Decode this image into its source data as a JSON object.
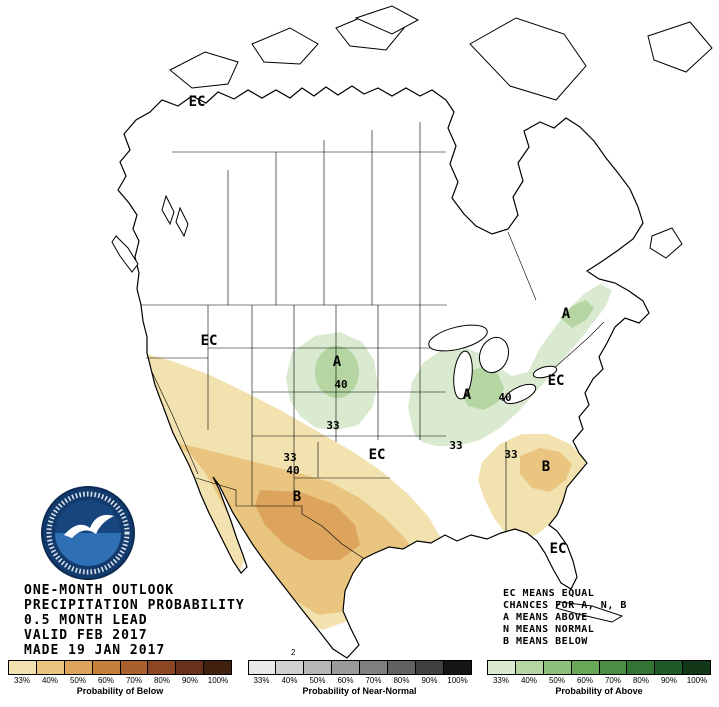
{
  "title_block": {
    "lines": [
      "ONE-MONTH OUTLOOK",
      "PRECIPITATION PROBABILITY",
      "0.5 MONTH LEAD",
      "VALID FEB 2017",
      "MADE 19 JAN 2017"
    ]
  },
  "legend_note": {
    "lines": [
      "EC MEANS EQUAL",
      "CHANCES FOR A, N, B",
      "A MEANS ABOVE",
      "N MEANS NORMAL",
      "B MEANS BELOW"
    ]
  },
  "map": {
    "labels": [
      {
        "id": "ec-northwest-canada",
        "text": "EC"
      },
      {
        "id": "ec-northwest-us",
        "text": "EC"
      },
      {
        "id": "ec-central-us",
        "text": "EC"
      },
      {
        "id": "ec-east-coast",
        "text": "EC"
      },
      {
        "id": "ec-florida",
        "text": "EC"
      },
      {
        "id": "a-northern-plains",
        "text": "A"
      },
      {
        "id": "contour-40-plains",
        "text": "40"
      },
      {
        "id": "contour-33-plains",
        "text": "33"
      },
      {
        "id": "a-great-lakes",
        "text": "A"
      },
      {
        "id": "contour-40-lakes",
        "text": "40"
      },
      {
        "id": "contour-33-lakes",
        "text": "33"
      },
      {
        "id": "a-northeast",
        "text": "A"
      },
      {
        "id": "contour-33-southwest",
        "text": "33"
      },
      {
        "id": "contour-40-southwest",
        "text": "40"
      },
      {
        "id": "b-southwest",
        "text": "B"
      },
      {
        "id": "contour-33-southeast",
        "text": "33"
      },
      {
        "id": "b-southeast",
        "text": "B"
      }
    ]
  },
  "region_fills": {
    "below_outer": "#f2e2b0",
    "below_mid": "#e9c580",
    "below_core": "#dca45c",
    "above_outer": "#d9ead0",
    "above_inner": "#b5d6a2"
  },
  "colorbars": [
    {
      "caption": "Probability of Below",
      "tick_labels": [
        "33%",
        "40%",
        "50%",
        "60%",
        "70%",
        "80%",
        "90%",
        "100%"
      ],
      "colors": [
        "#f2e2b0",
        "#e9c580",
        "#dca45c",
        "#c5803b",
        "#a9602e",
        "#8b4724",
        "#67311a",
        "#40200e"
      ]
    },
    {
      "caption": "Probability of Near-Normal",
      "tick_labels": [
        "33%",
        "40%",
        "50%",
        "60%",
        "70%",
        "80%",
        "90%",
        "100%"
      ],
      "colors": [
        "#e9e9e9",
        "#d0d0d0",
        "#b6b6b6",
        "#9b9b9b",
        "#7f7f7f",
        "#626262",
        "#414141",
        "#161616"
      ]
    },
    {
      "caption": "Probability of Above",
      "tick_labels": [
        "33%",
        "40%",
        "50%",
        "60%",
        "70%",
        "80%",
        "90%",
        "100%"
      ],
      "colors": [
        "#d9ead0",
        "#b5d6a2",
        "#8fc07b",
        "#68a758",
        "#4a8e43",
        "#337434",
        "#1f5a28",
        "#123819"
      ]
    }
  ],
  "stray_mark": {
    "text": "2"
  },
  "icons": {
    "logo": "noaa-seal"
  }
}
